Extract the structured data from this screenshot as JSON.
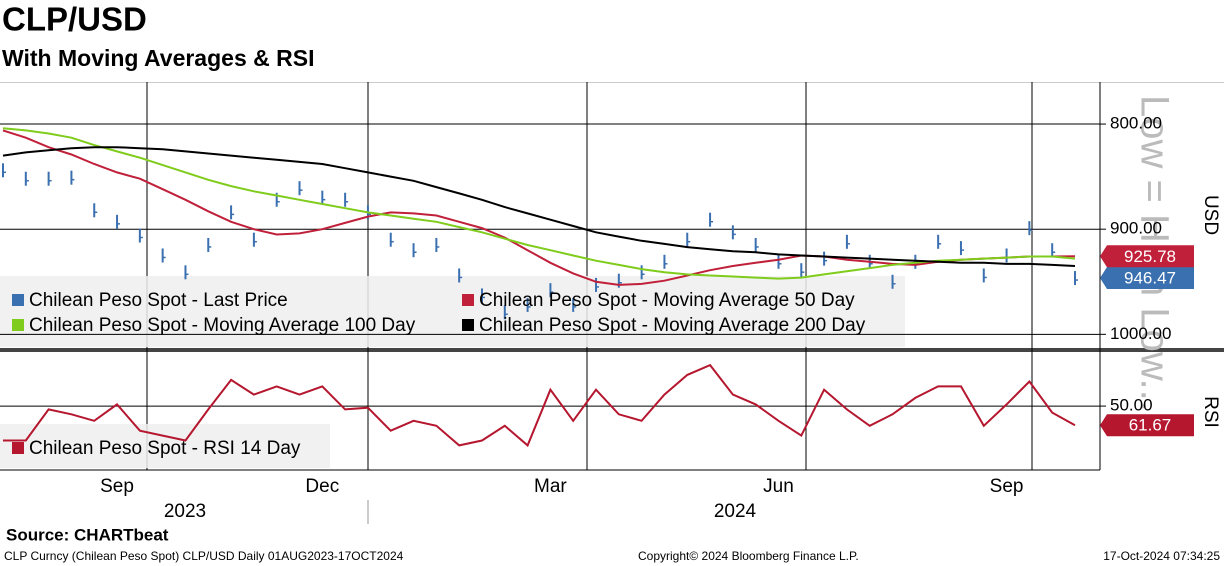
{
  "chart_data": {
    "type": "line",
    "title": "CLP/USD",
    "subtitle": "With Moving Averages & RSI",
    "annotations": [
      "Low = High Low..."
    ],
    "y_label": "USD",
    "y2_label": "RSI",
    "categories": [
      null,
      null,
      null,
      null,
      null,
      "Sep",
      null,
      null,
      null,
      null,
      null,
      null,
      null,
      null,
      "Dec",
      null,
      null,
      null,
      null,
      null,
      null,
      null,
      null,
      null,
      "Mar",
      null,
      null,
      null,
      null,
      null,
      null,
      null,
      null,
      null,
      "Jun",
      null,
      null,
      null,
      null,
      null,
      null,
      null,
      null,
      null,
      "Sep",
      null,
      null,
      null
    ],
    "x_groups": [
      "2023",
      "2024"
    ],
    "ylim": [
      760,
      1013
    ],
    "y_inverted": true,
    "yticks": [
      {
        "value": 800,
        "label": "800.00"
      },
      {
        "value": 900,
        "label": "900.00"
      },
      {
        "value": 1000,
        "label": "1000.00"
      }
    ],
    "y2lim": [
      17,
      89
    ],
    "y2_inverted": true,
    "y2ticks": [
      {
        "value": 50,
        "label": "50.00"
      }
    ],
    "grid": true,
    "series": [
      {
        "name": "Chilean Peso Spot - Last Price",
        "color": "#3a6fb0",
        "style": "bars",
        "end_label": true,
        "values": [
          844,
          852,
          852,
          851,
          882,
          893,
          906,
          925,
          941,
          915,
          884,
          910,
          872,
          861,
          870,
          872,
          884,
          910,
          920,
          915,
          944,
          963,
          979,
          972,
          958,
          972,
          953,
          949,
          941,
          931,
          910,
          891,
          903,
          915,
          931,
          939,
          928,
          912,
          931,
          950,
          931,
          912,
          918,
          944,
          925,
          899,
          920,
          946.47
        ]
      },
      {
        "name": "Chilean Peso Spot - Moving Average 50 Day",
        "color": "#c0203a",
        "end_label": true,
        "values": [
          806,
          813,
          822,
          829,
          838,
          846,
          852,
          862,
          872,
          883,
          893,
          900,
          905,
          904,
          900,
          894,
          888,
          884,
          885,
          887,
          893,
          899,
          908,
          920,
          932,
          942,
          950,
          953,
          952,
          949,
          944,
          939,
          935,
          932,
          929,
          925,
          926,
          929,
          931,
          933,
          934,
          931,
          929,
          928,
          927,
          926,
          926,
          925.78
        ]
      },
      {
        "name": "Chilean Peso Spot - Moving Average 100 Day",
        "color": "#7fcc1c",
        "values": [
          804,
          806,
          809,
          813,
          820,
          826,
          832,
          839,
          846,
          853,
          859,
          864,
          868,
          872,
          876,
          880,
          884,
          887,
          890,
          893,
          898,
          903,
          909,
          915,
          920,
          925,
          930,
          934,
          938,
          941,
          943,
          944,
          945,
          946,
          947,
          946,
          943,
          940,
          937,
          934,
          932,
          930,
          929,
          928,
          927,
          926,
          926,
          928
        ]
      },
      {
        "name": "Chilean Peso Spot - Moving Average 200 Day",
        "color": "#000000",
        "values": [
          830,
          827,
          825,
          823,
          822,
          822,
          823,
          824,
          826,
          828,
          830,
          832,
          834,
          836,
          838,
          842,
          846,
          850,
          854,
          860,
          866,
          872,
          879,
          885,
          891,
          897,
          903,
          907,
          911,
          914,
          917,
          919,
          921,
          922,
          924,
          925,
          926,
          927,
          928,
          929,
          930,
          931,
          932,
          932,
          933,
          933,
          934,
          935
        ]
      },
      {
        "name": "Chilean Peso Spot - RSI 14 Day",
        "color": "#b5172f",
        "axis": "y2",
        "end_label": true,
        "values": [
          71,
          71,
          52,
          55,
          59,
          49,
          65,
          68,
          71,
          52,
          34,
          43,
          38,
          43,
          38,
          52,
          51,
          65,
          59,
          62,
          74,
          71,
          62,
          74,
          40,
          59,
          40,
          55,
          59,
          43,
          31,
          25,
          43,
          49,
          59,
          68,
          40,
          52,
          62,
          55,
          45,
          38,
          38,
          62,
          49,
          35,
          54,
          61.67
        ]
      }
    ]
  },
  "footer": {
    "source": "Source: CHARTbeat",
    "ticker": "CLP Curncy (Chilean Peso Spot) CLP/USD  Daily 01AUG2023-17OCT2024",
    "copyright": "Copyright© 2024 Bloomberg Finance L.P.",
    "timestamp": "17-Oct-2024 07:34:25"
  }
}
